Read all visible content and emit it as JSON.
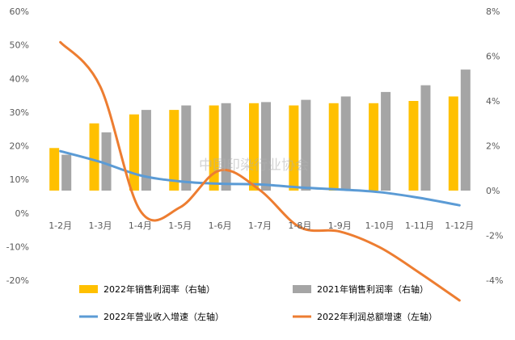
{
  "chart_data": {
    "type": "bar",
    "categories": [
      "1-2月",
      "1-3月",
      "1-4月",
      "1-5月",
      "1-6月",
      "1-7月",
      "1-8月",
      "1-9月",
      "1-10月",
      "1-11月",
      "1-12月"
    ],
    "left_axis": {
      "ticks": [
        "60%",
        "50%",
        "40%",
        "30%",
        "20%",
        "10%",
        "0%",
        "-10%",
        "-20%"
      ],
      "ylim": [
        -20,
        60
      ]
    },
    "right_axis": {
      "ticks": [
        "8%",
        "6%",
        "4%",
        "2%",
        "0%",
        "-2%",
        "-4%"
      ],
      "ylim": [
        -4,
        8
      ]
    },
    "series": [
      {
        "name": "2022年销售利润率（右轴）",
        "kind": "bar",
        "axis": "right",
        "color": "#FFC000",
        "values": [
          1.9,
          3.0,
          3.4,
          3.6,
          3.8,
          3.9,
          3.8,
          3.9,
          3.9,
          4.0,
          4.2
        ]
      },
      {
        "name": "2021年销售利润率（右轴）",
        "kind": "bar",
        "axis": "right",
        "color": "#A5A5A5",
        "values": [
          1.6,
          2.6,
          3.6,
          3.8,
          3.9,
          3.95,
          4.05,
          4.2,
          4.4,
          4.7,
          5.4
        ]
      },
      {
        "name": "2022年营业收入增速（左轴）",
        "kind": "line",
        "axis": "left",
        "color": "#5B9BD5",
        "values": [
          18.4,
          15.2,
          11.2,
          9.4,
          8.7,
          8.5,
          7.6,
          7.0,
          6.2,
          4.5,
          2.3
        ]
      },
      {
        "name": "2022年利润总额增速（左轴）",
        "kind": "line",
        "axis": "left",
        "color": "#ED7D31",
        "values": [
          50.8,
          37.6,
          0.7,
          1.7,
          12.7,
          6.8,
          -4.2,
          -5.5,
          -10.2,
          -17.8,
          -26.0
        ]
      }
    ],
    "watermark": "中国印染行业协会"
  }
}
